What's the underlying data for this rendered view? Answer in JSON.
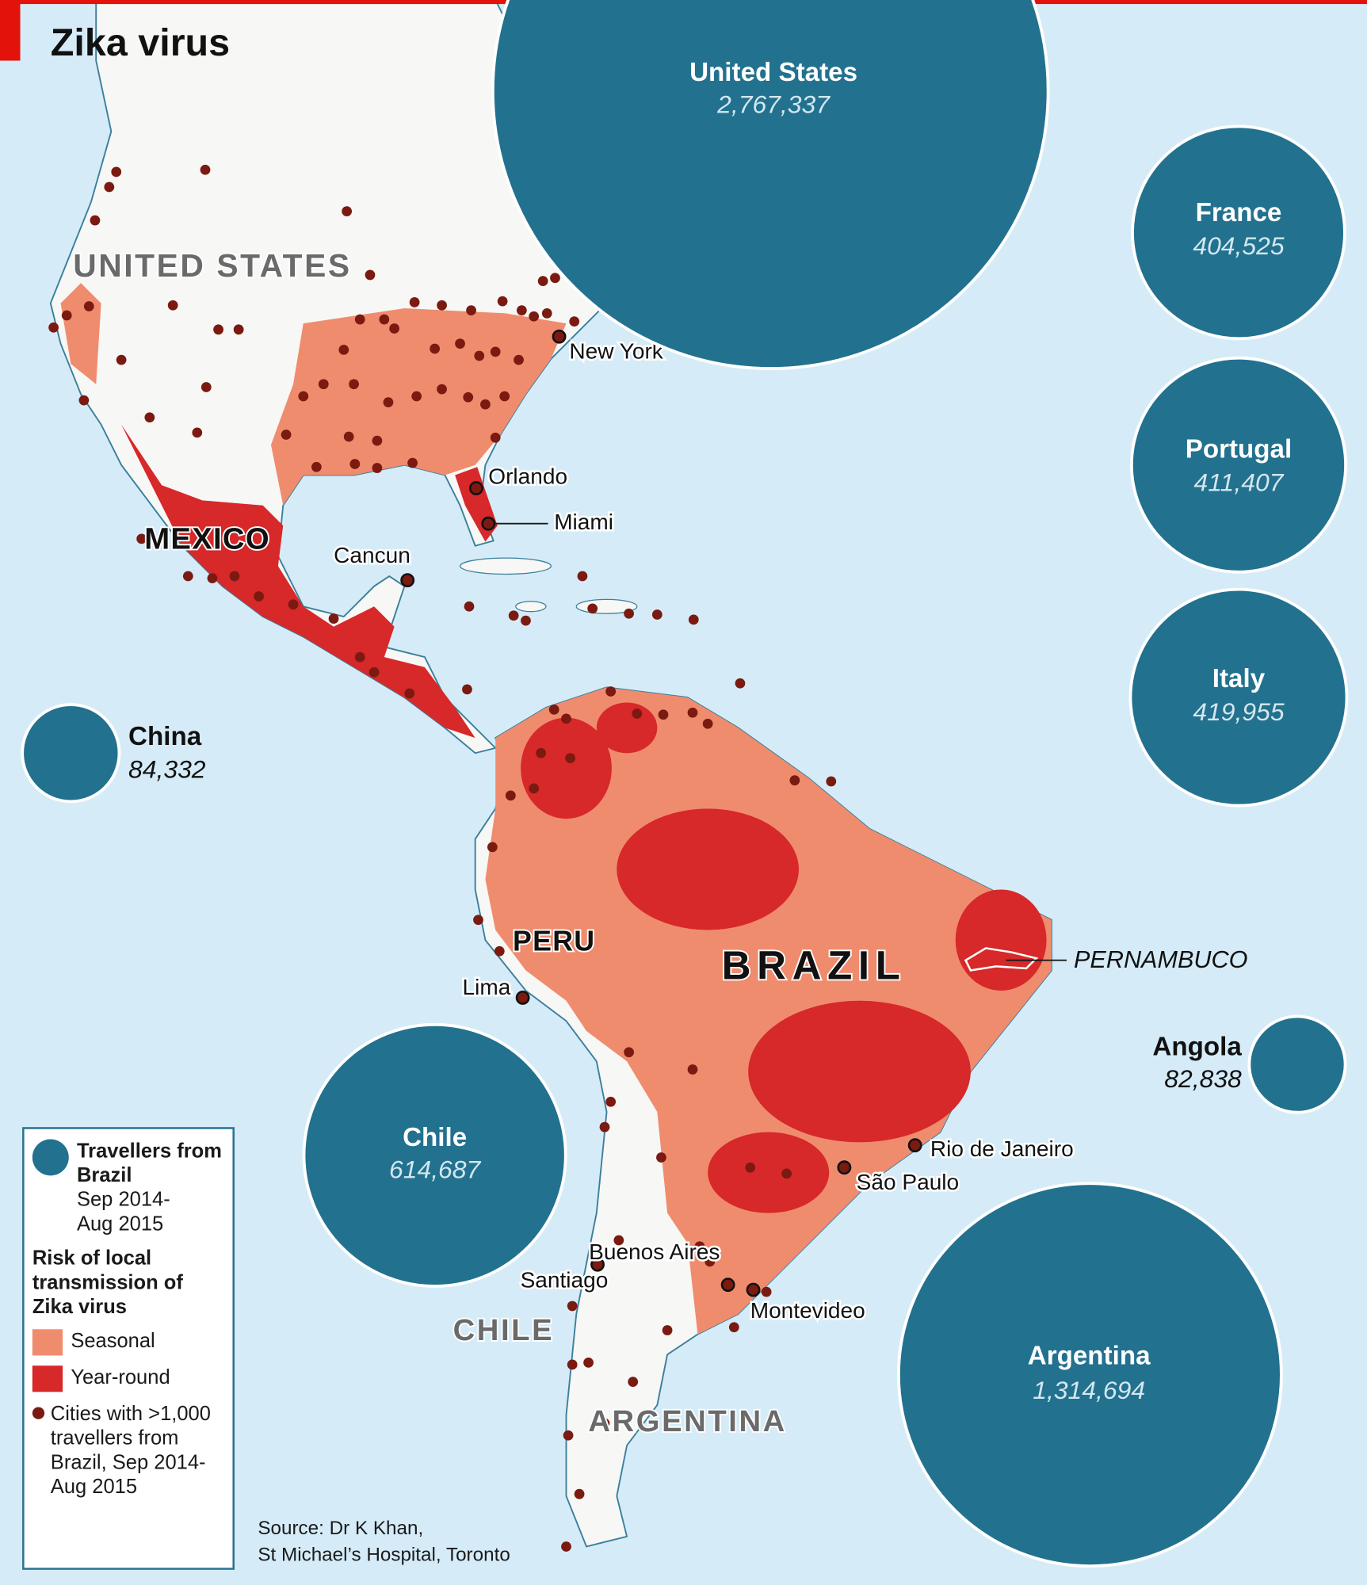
{
  "title": "Zika virus",
  "bubbles": [
    {
      "name": "United States",
      "value": 2767337,
      "label": "2,767,337"
    },
    {
      "name": "France",
      "value": 404525,
      "label": "404,525"
    },
    {
      "name": "Portugal",
      "value": 411407,
      "label": "411,407"
    },
    {
      "name": "Italy",
      "value": 419955,
      "label": "419,955"
    },
    {
      "name": "China",
      "value": 84332,
      "label": "84,332"
    },
    {
      "name": "Angola",
      "value": 82838,
      "label": "82,838"
    },
    {
      "name": "Chile",
      "value": 614687,
      "label": "614,687"
    },
    {
      "name": "Argentina",
      "value": 1314694,
      "label": "1,314,694"
    }
  ],
  "country_labels": [
    "UNITED STATES",
    "MEXICO",
    "PERU",
    "BRAZIL",
    "CHILE",
    "ARGENTINA"
  ],
  "region_label": "PERNAMBUCO",
  "cities": [
    "New York",
    "Orlando",
    "Miami",
    "Cancun",
    "Lima",
    "Rio de Janeiro",
    "São Paulo",
    "Santiago",
    "Buenos Aires",
    "Montevideo"
  ],
  "legend": {
    "bubble_title": "Travellers from Brazil",
    "bubble_period": "Sep 2014-Aug 2015",
    "risk_title": "Risk of local transmission of Zika virus",
    "seasonal": "Seasonal",
    "year_round": "Year-round",
    "cities_note": "Cities with >1,000 travellers from Brazil, Sep 2014-Aug 2015"
  },
  "source": [
    "Source: Dr K Khan,",
    "St Michael’s Hospital, Toronto"
  ]
}
